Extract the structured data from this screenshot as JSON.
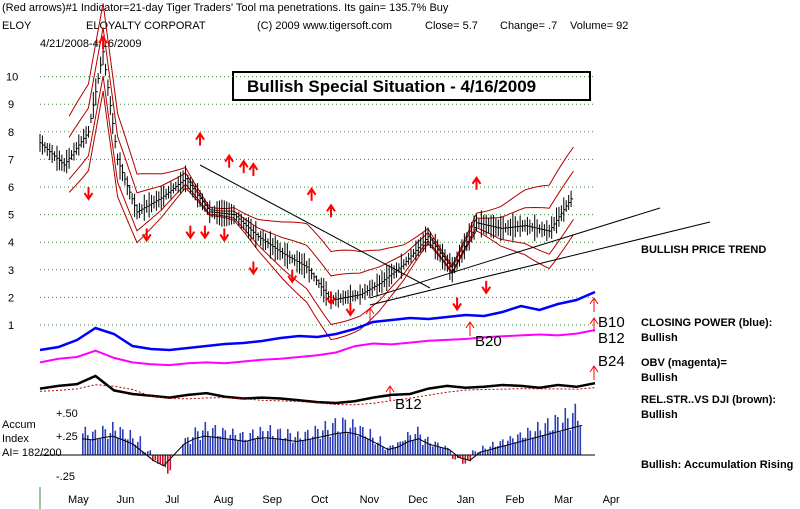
{
  "header": {
    "line1": "(Red arrows)#1 Indicator=21-day Tiger Traders' Tool ma penetrations. Its gain= 135.7% Buy",
    "ticker": "ELOY",
    "company": "ELOYALTY CORPORAT",
    "copyright": "(C) 2009 www.tigersoft.com",
    "close": "Close=  5.7",
    "change": "Change= .7",
    "volume": "Volume= 92",
    "date_range": "4/21/2008-4/16/2009"
  },
  "banner": "Bullish Special Situation - 4/16/2009",
  "annotations": {
    "trend": "BULLISH PRICE TREND",
    "closing_power_1": "CLOSING POWER (blue):",
    "closing_power_2": "Bullish",
    "obv_1": "OBV (magenta)=",
    "obv_2": "Bullish",
    "relstr_1": "REL.STR..VS DJI (brown):",
    "relstr_2": "Bullish",
    "accum_rising": "Bullish: Accumulation Rising",
    "sig_b10": "B10",
    "sig_b12": "B12",
    "sig_b24": "B24",
    "sig_b20": "B20",
    "sig_b12_low": "B12"
  },
  "accum_label": {
    "line1": "Accum",
    "line2": "Index",
    "line3": "AI= 182/200"
  },
  "colors": {
    "price": "#000000",
    "bands": "#b30000",
    "arrows": "#ff0000",
    "closing_power": "#0000ff",
    "obv": "#ff00ff",
    "relstr": "#000000",
    "accum_bars": "#2c3fb8",
    "accum_negative": "#c8102e",
    "grid": "#3c8c3c"
  },
  "chart_data": {
    "type": "line",
    "title": "Bullish Special Situation - 4/16/2009",
    "xlabel": "",
    "ylabel": "",
    "x_ticks": [
      "May",
      "Jun",
      "Jul",
      "Aug",
      "Sep",
      "Oct",
      "Nov",
      "Dec",
      "Jan",
      "Feb",
      "Mar",
      "Apr"
    ],
    "y_ticks": [
      1,
      2,
      3,
      4,
      5,
      6,
      7,
      8,
      9,
      10
    ],
    "ylim": [
      0,
      11
    ],
    "grid": true,
    "series": [
      {
        "name": "",
        "x": [
          0,
          0.5,
          1,
          1.3,
          1.6,
          2,
          2.5,
          3,
          3.5,
          4,
          4.5,
          5,
          5.5,
          6,
          6.3,
          6.6,
          7,
          7.5,
          8,
          8.5,
          9,
          9.5,
          10,
          10.5,
          11
        ],
        "values": [
          7.6,
          6.8,
          8.0,
          10.9,
          7.0,
          5.1,
          5.6,
          6.3,
          5.1,
          5.0,
          4.2,
          3.6,
          3.1,
          1.9,
          2.0,
          2.1,
          2.5,
          3.2,
          4.2,
          3.0,
          4.7,
          4.5,
          4.6,
          4.4,
          5.7
        ]
      }
    ],
    "accum_index": {
      "y_ticks": [
        "+.50",
        "+.25",
        "-.25"
      ],
      "values": [
        0.3,
        0.28,
        0.32,
        0.35,
        0.28,
        0.2,
        0.05,
        -0.1,
        -0.2,
        0.0,
        0.2,
        0.3,
        0.35,
        0.33,
        0.3,
        0.28,
        0.25,
        0.3,
        0.32,
        0.3,
        0.28,
        0.25,
        0.28,
        0.32,
        0.36,
        0.4,
        0.42,
        0.38,
        0.3,
        0.2,
        0.1,
        0.15,
        0.25,
        0.3,
        0.2,
        0.15,
        0.1,
        -0.05,
        -0.1,
        0.05,
        0.1,
        0.15,
        0.2,
        0.25,
        0.3,
        0.35,
        0.4,
        0.45,
        0.5,
        0.55
      ]
    }
  }
}
